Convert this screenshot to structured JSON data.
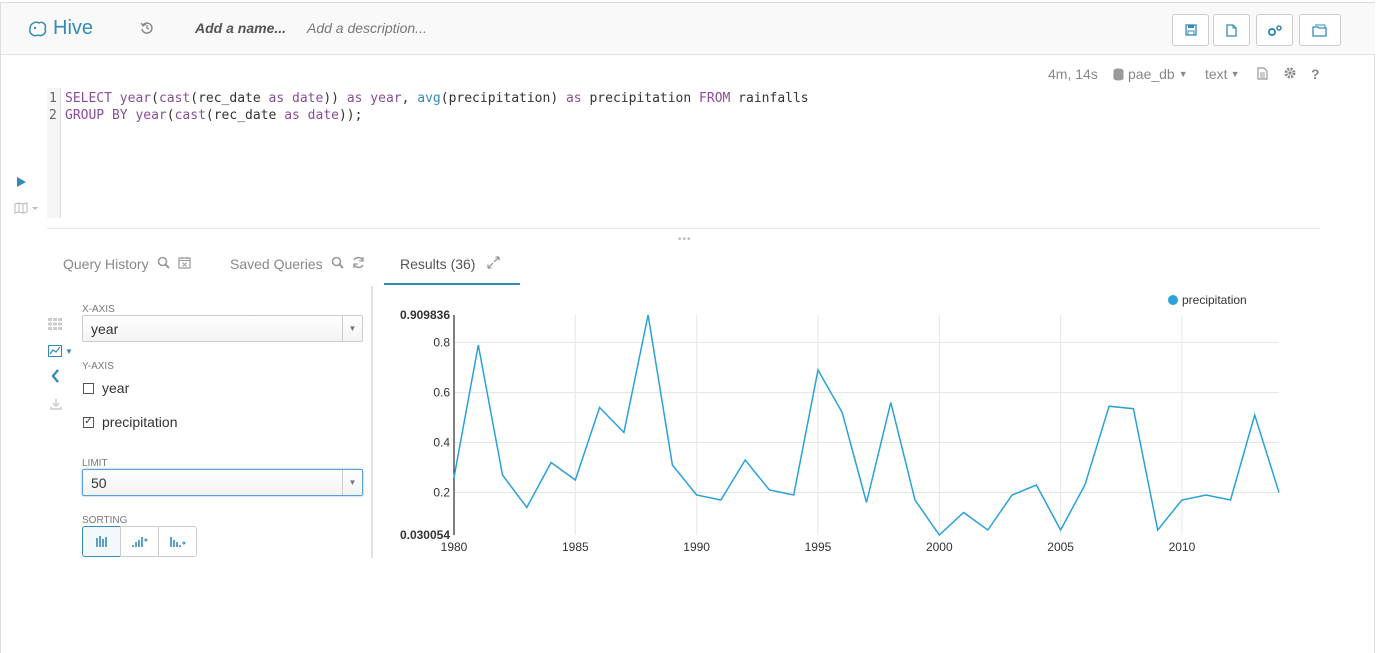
{
  "header": {
    "app_name": "Hive",
    "name_placeholder": "Add a name...",
    "description_placeholder": "Add a description..."
  },
  "editor_meta": {
    "elapsed": "4m, 14s",
    "database": "pae_db",
    "format": "text"
  },
  "editor": {
    "lines": [
      {
        "num": "1"
      },
      {
        "num": "2"
      }
    ]
  },
  "tabs": {
    "query_history": "Query History",
    "saved_queries": "Saved Queries",
    "results": "Results (36)"
  },
  "settings": {
    "x_axis_label": "X-AXIS",
    "x_axis_value": "year",
    "y_axis_label": "Y-AXIS",
    "y_options": [
      {
        "label": "year",
        "checked": false
      },
      {
        "label": "precipitation",
        "checked": true
      }
    ],
    "limit_label": "LIMIT",
    "limit_value": "50",
    "sorting_label": "SORTING"
  },
  "colors": {
    "accent": "#338bb8",
    "series": "#29a1d9"
  },
  "chart_data": {
    "type": "line",
    "x": [
      1980,
      1981,
      1982,
      1983,
      1984,
      1985,
      1986,
      1987,
      1988,
      1989,
      1990,
      1991,
      1992,
      1993,
      1994,
      1995,
      1996,
      1997,
      1998,
      1999,
      2000,
      2001,
      2002,
      2003,
      2004,
      2005,
      2006,
      2007,
      2008,
      2009,
      2010,
      2011,
      2012,
      2013,
      2014
    ],
    "series": [
      {
        "name": "precipitation",
        "values": [
          0.26,
          0.79,
          0.27,
          0.14,
          0.32,
          0.25,
          0.54,
          0.44,
          0.909836,
          0.31,
          0.19,
          0.17,
          0.33,
          0.21,
          0.19,
          0.69,
          0.52,
          0.16,
          0.56,
          0.17,
          0.030054,
          0.12,
          0.05,
          0.19,
          0.23,
          0.05,
          0.23,
          0.545,
          0.535,
          0.05,
          0.17,
          0.19,
          0.17,
          0.51,
          0.2
        ]
      }
    ],
    "xlim": [
      1980,
      2014
    ],
    "ylim": [
      0.030054,
      0.909836
    ],
    "x_ticks": [
      "1980",
      "1985",
      "1990",
      "1995",
      "2000",
      "2005",
      "2010"
    ],
    "y_ticks": [
      "0.2",
      "0.4",
      "0.6",
      "0.8"
    ],
    "y_min_label": "0.030054",
    "y_max_label": "0.909836",
    "legend": "top-right",
    "grid": true
  }
}
